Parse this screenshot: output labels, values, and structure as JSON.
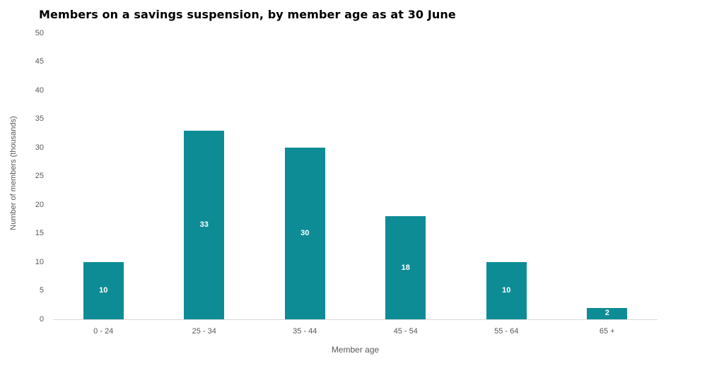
{
  "page": {
    "background": "#ffffff"
  },
  "colors": {
    "bar": "#0E8C96",
    "bar_label": "#ffffff",
    "axis_text": "#595959",
    "baseline": "#D9D9D9",
    "title": "#000000"
  },
  "chart_data": {
    "type": "bar",
    "title": "Members on a savings suspension, by member age as at 30 June",
    "categories": [
      "0 - 24",
      "25 - 34",
      "35 - 44",
      "45 - 54",
      "55 - 64",
      "65 +"
    ],
    "values": [
      10,
      33,
      30,
      18,
      10,
      2
    ],
    "xlabel": "Member age",
    "ylabel": "Number of members (thousands)",
    "ylim": [
      0,
      50
    ],
    "yticks": [
      0,
      5,
      10,
      15,
      20,
      25,
      30,
      35,
      40,
      45,
      50
    ],
    "grid": false,
    "legend": "none",
    "bar_label_position": "inside-center"
  }
}
